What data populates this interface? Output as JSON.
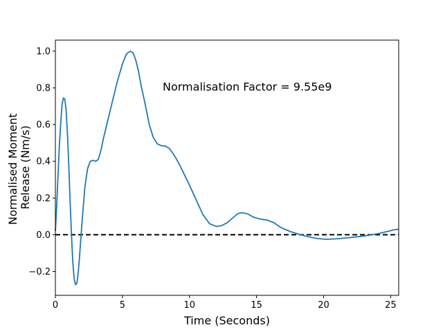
{
  "chart_data": {
    "type": "line",
    "title": "",
    "xlabel": "Time (Seconds)",
    "ylabel_lines": [
      "Normalised Moment",
      "Release (Nm/s)"
    ],
    "xlim": [
      0,
      25.6
    ],
    "ylim": [
      -0.33,
      1.06
    ],
    "xticks": [
      0,
      5,
      10,
      15,
      20,
      25
    ],
    "xtick_labels": [
      "0",
      "5",
      "10",
      "15",
      "20",
      "25"
    ],
    "yticks": [
      -0.2,
      0.0,
      0.2,
      0.4,
      0.6,
      0.8,
      1.0
    ],
    "ytick_labels": [
      "−0.2",
      "0.0",
      "0.2",
      "0.4",
      "0.6",
      "0.8",
      "1.0"
    ],
    "grid": false,
    "annotation": {
      "text": "Normalisation Factor = 9.55e9",
      "x": 8.0,
      "y": 0.8
    },
    "reference_line": {
      "y": 0.0,
      "style": "dashed",
      "color": "#000000"
    },
    "series": [
      {
        "color": "#1f77b4",
        "x": [
          0,
          0.1,
          0.2,
          0.3,
          0.4,
          0.5,
          0.6,
          0.7,
          0.8,
          0.9,
          1.0,
          1.1,
          1.2,
          1.3,
          1.4,
          1.5,
          1.6,
          1.7,
          1.8,
          1.9,
          2.0,
          2.2,
          2.4,
          2.6,
          2.8,
          3.0,
          3.2,
          3.4,
          3.6,
          3.8,
          4.0,
          4.3,
          4.6,
          5.0,
          5.3,
          5.6,
          5.8,
          6.0,
          6.2,
          6.4,
          6.7,
          7.0,
          7.3,
          7.6,
          7.9,
          8.2,
          8.5,
          8.8,
          9.2,
          9.6,
          10.0,
          10.5,
          11.0,
          11.5,
          12.0,
          12.4,
          12.8,
          13.2,
          13.6,
          13.9,
          14.3,
          14.8,
          15.3,
          15.8,
          16.3,
          16.8,
          17.5,
          18.2,
          18.8,
          19.5,
          20.2,
          21.0,
          22.0,
          23.0,
          24.0,
          24.6,
          25.0,
          25.3,
          25.6
        ],
        "y": [
          0.02,
          0.16,
          0.33,
          0.49,
          0.61,
          0.71,
          0.745,
          0.74,
          0.68,
          0.55,
          0.38,
          0.18,
          0.0,
          -0.15,
          -0.24,
          -0.272,
          -0.265,
          -0.21,
          -0.12,
          -0.02,
          0.08,
          0.26,
          0.36,
          0.4,
          0.405,
          0.4,
          0.41,
          0.46,
          0.53,
          0.59,
          0.65,
          0.74,
          0.83,
          0.93,
          0.985,
          1.0,
          0.99,
          0.95,
          0.89,
          0.81,
          0.71,
          0.6,
          0.53,
          0.495,
          0.485,
          0.483,
          0.47,
          0.44,
          0.39,
          0.33,
          0.27,
          0.19,
          0.11,
          0.06,
          0.045,
          0.05,
          0.065,
          0.09,
          0.115,
          0.12,
          0.115,
          0.095,
          0.085,
          0.08,
          0.065,
          0.04,
          0.018,
          0.002,
          -0.01,
          -0.02,
          -0.025,
          -0.022,
          -0.015,
          -0.007,
          0.005,
          0.015,
          0.022,
          0.028,
          0.03
        ]
      }
    ]
  }
}
